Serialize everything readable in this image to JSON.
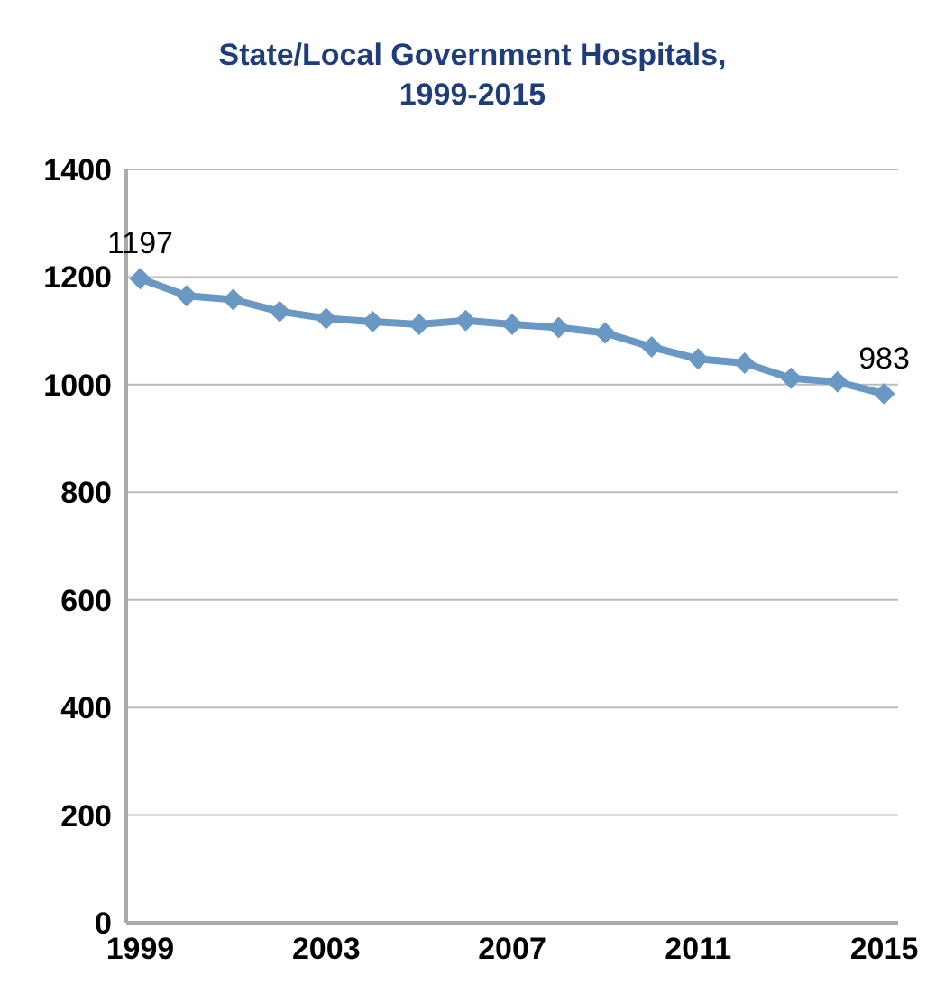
{
  "chart_data": {
    "type": "line",
    "title": "State/Local Government Hospitals, 1999-2015",
    "x": [
      1999,
      2000,
      2001,
      2002,
      2003,
      2004,
      2005,
      2006,
      2007,
      2008,
      2009,
      2010,
      2011,
      2012,
      2013,
      2014,
      2015
    ],
    "series": [
      {
        "color": "#6a98c4",
        "values": [
          1197,
          1165,
          1158,
          1136,
          1123,
          1117,
          1112,
          1119,
          1112,
          1106,
          1096,
          1070,
          1048,
          1040,
          1012,
          1005,
          983
        ],
        "value_labels": [
          "1197",
          null,
          null,
          null,
          null,
          null,
          null,
          null,
          null,
          null,
          null,
          null,
          null,
          null,
          null,
          null,
          "983"
        ]
      }
    ],
    "xlim": [
      1998.7,
      2015.3
    ],
    "xticks": [
      1999,
      2003,
      2007,
      2011,
      2015
    ],
    "ylim": [
      0,
      1400
    ],
    "yticks": [
      0,
      200,
      400,
      600,
      800,
      1000,
      1200,
      1400
    ],
    "grid": "y",
    "legend": false,
    "marker": "diamond",
    "line_style": "solid"
  }
}
